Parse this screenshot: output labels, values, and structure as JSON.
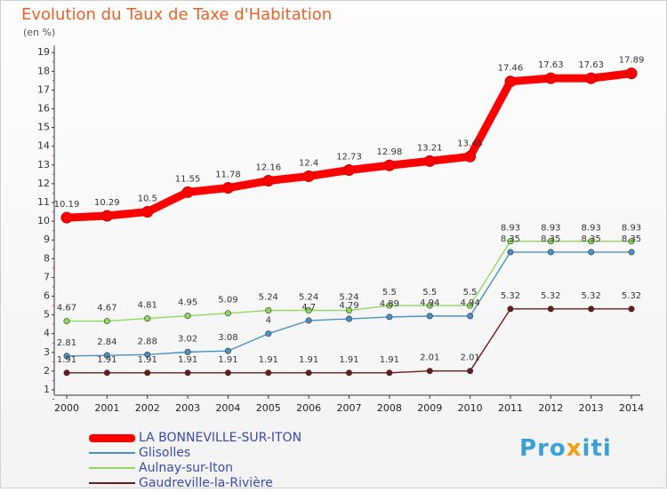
{
  "header": {
    "title": "Evolution du Taux de Taxe d'Habitation",
    "subtitle": "(en %)"
  },
  "logo": {
    "text": "Proxiti"
  },
  "chart_data": {
    "type": "line",
    "title": "Evolution du Taux de Taxe d'Habitation",
    "ylabel": "(en %)",
    "xlabel": "",
    "ylim": [
      1,
      19
    ],
    "yticks": [
      "1",
      "2",
      "3",
      "4",
      "5",
      "6",
      "7",
      "8",
      "9",
      "10",
      "11",
      "12",
      "13",
      "14",
      "15",
      "16",
      "17",
      "18",
      "19"
    ],
    "x": [
      "2000",
      "2001",
      "2002",
      "2003",
      "2004",
      "2005",
      "2006",
      "2007",
      "2008",
      "2009",
      "2010",
      "2011",
      "2012",
      "2013",
      "2014"
    ],
    "grid": false,
    "legend_position": "bottom-left",
    "series": [
      {
        "name": "LA BONNEVILLE-SUR-ITON",
        "color": "#ff0000",
        "values": [
          10.19,
          10.29,
          10.5,
          11.55,
          11.78,
          12.16,
          12.4,
          12.73,
          12.98,
          13.21,
          13.45,
          17.46,
          17.63,
          17.63,
          17.89
        ],
        "labels": [
          "10.19",
          "10.29",
          "10.5",
          "11.55",
          "11.78",
          "12.16",
          "12.4",
          "12.73",
          "12.98",
          "13.21",
          "13.45",
          "17.46",
          "17.63",
          "17.63",
          "17.89"
        ]
      },
      {
        "name": "Glisolles",
        "color": "#4a90c8",
        "values": [
          2.81,
          2.84,
          2.88,
          3.02,
          3.08,
          4.0,
          4.7,
          4.79,
          4.89,
          4.94,
          4.94,
          8.35,
          8.35,
          8.35,
          8.35
        ],
        "labels": [
          "2.81",
          "2.84",
          "2.88",
          "3.02",
          "3.08",
          "4",
          "4.7",
          "4.79",
          "4.89",
          "4.94",
          "4.94",
          "8.35",
          "8.35",
          "8.35",
          "8.35"
        ]
      },
      {
        "name": "Aulnay-sur-Iton",
        "color": "#90d860",
        "values": [
          4.67,
          4.67,
          4.81,
          4.95,
          5.09,
          5.24,
          5.24,
          5.24,
          5.5,
          5.5,
          5.5,
          8.93,
          8.93,
          8.93,
          8.93
        ],
        "labels": [
          "4.67",
          "4.67",
          "4.81",
          "4.95",
          "5.09",
          "5.24",
          "5.24",
          "5.24",
          "5.5",
          "5.5",
          "5.5",
          "8.93",
          "8.93",
          "8.93",
          "8.93"
        ]
      },
      {
        "name": "Gaudreville-la-Rivière",
        "color": "#6b1a1a",
        "values": [
          1.91,
          1.91,
          1.91,
          1.91,
          1.91,
          1.91,
          1.91,
          1.91,
          1.91,
          2.01,
          2.01,
          5.32,
          5.32,
          5.32,
          5.32
        ],
        "labels": [
          "1.91",
          "1.91",
          "1.91",
          "1.91",
          "1.91",
          "1.91",
          "1.91",
          "1.91",
          "1.91",
          "2.01",
          "2.01",
          "5.32",
          "5.32",
          "5.32",
          "5.32"
        ]
      }
    ]
  }
}
